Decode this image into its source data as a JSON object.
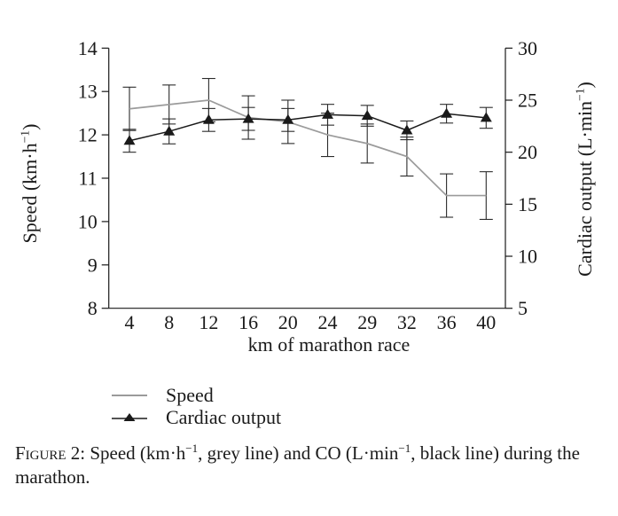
{
  "figure": {
    "caption": {
      "figure_label": "Figure 2:",
      "seg1": " Speed (km·h",
      "sup1": "−1",
      "seg2": ", grey line) and CO (L·min",
      "sup2": "−1",
      "seg3": ", black line) during the marathon."
    },
    "legend": [
      {
        "label": "Speed"
      },
      {
        "label": "Cardiac output"
      }
    ]
  },
  "axes": {
    "left": {
      "pre": "Speed (km·h",
      "sup": "−1",
      "post": ")"
    },
    "right": {
      "pre": "Cardiac output (L·min",
      "sup": "−1",
      "post": ")"
    },
    "x_title": "km of marathon race"
  },
  "chart_data": {
    "type": "line",
    "x": [
      4,
      8,
      12,
      16,
      20,
      24,
      29,
      32,
      36,
      40
    ],
    "xlabel": "km of marathon race",
    "ylabel_left": "Speed (km·h−1)",
    "ylabel_right": "Cardiac output (L·min−1)",
    "y_left_ticks": [
      8,
      9,
      10,
      11,
      12,
      13,
      14
    ],
    "y_right_ticks": [
      5,
      10,
      15,
      20,
      25,
      30
    ],
    "y_left_range": [
      8,
      14
    ],
    "y_right_range": [
      5,
      30
    ],
    "grid": false,
    "legend_position": "below-left",
    "error_bar_color": "#2b2b2b",
    "axis_color": "#1a1a1a",
    "series": [
      {
        "name": "Speed",
        "axis": "left",
        "color": "#9b9b9b",
        "marker": "none",
        "line_width": 1.7,
        "values": [
          12.6,
          12.7,
          12.8,
          12.4,
          12.3,
          12.0,
          11.8,
          11.5,
          10.6,
          10.6
        ],
        "errors": [
          0.5,
          0.45,
          0.5,
          0.5,
          0.5,
          0.5,
          0.45,
          0.45,
          0.5,
          0.55
        ]
      },
      {
        "name": "Cardiac output",
        "axis": "right",
        "color": "#1a1a1a",
        "marker": "triangle",
        "line_width": 1.5,
        "values": [
          21.1,
          22.0,
          23.1,
          23.2,
          23.1,
          23.6,
          23.5,
          22.1,
          23.7,
          23.3
        ],
        "errors": [
          1.1,
          1.2,
          1.1,
          1.1,
          1.1,
          1.0,
          1.0,
          0.9,
          0.9,
          1.0
        ]
      }
    ]
  }
}
